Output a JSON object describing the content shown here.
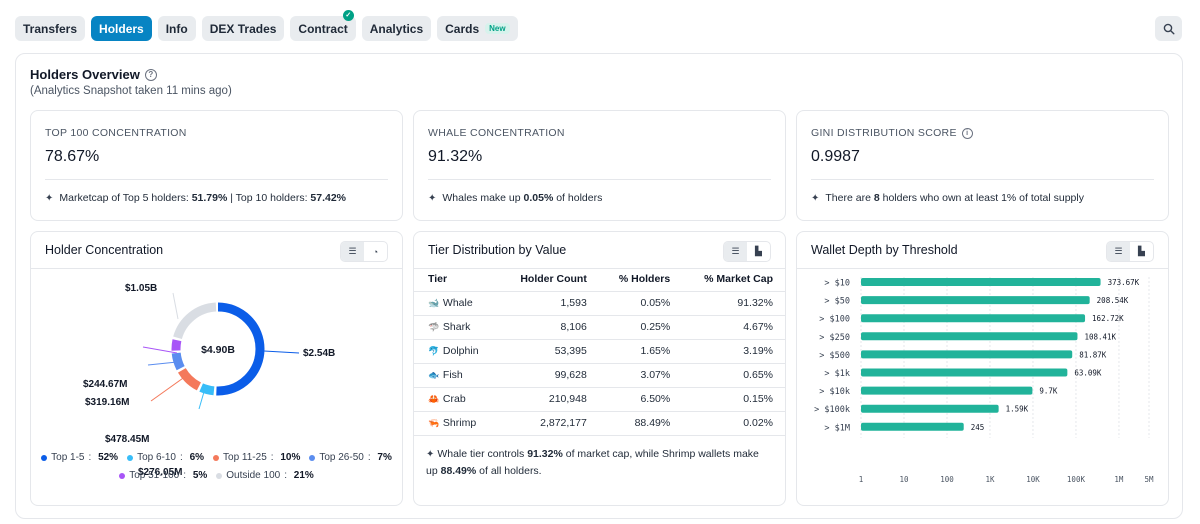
{
  "tabs": [
    {
      "label": "Transfers",
      "active": false
    },
    {
      "label": "Holders",
      "active": true
    },
    {
      "label": "Info",
      "active": false
    },
    {
      "label": "DEX Trades",
      "active": false
    },
    {
      "label": "Contract",
      "active": false
    },
    {
      "label": "Analytics",
      "active": false
    },
    {
      "label": "Cards",
      "active": false,
      "badge": "New"
    }
  ],
  "overview": {
    "title": "Holders Overview",
    "subtitle": "(Analytics Snapshot taken 11 mins ago)"
  },
  "stats": {
    "top100": {
      "label": "TOP 100 CONCENTRATION",
      "value": "78.67%",
      "note_pre": "Marketcap of Top 5 holders: ",
      "note_b1": "51.79%",
      "note_mid": " | Top 10 holders: ",
      "note_b2": "57.42%"
    },
    "whale": {
      "label": "WHALE CONCENTRATION",
      "value": "91.32%",
      "note_pre": "Whales make up ",
      "note_b1": "0.05%",
      "note_post": " of holders"
    },
    "gini": {
      "label": "GINI DISTRIBUTION SCORE",
      "value": "0.9987",
      "note_pre": "There are ",
      "note_b1": "8",
      "note_post": " holders who own at least 1% of total supply"
    }
  },
  "concentration": {
    "title": "Holder Concentration",
    "center": "$4.90B",
    "slices": [
      {
        "label": "Top 1-5",
        "pct": "52%",
        "value": 52,
        "amount": "$2.54B",
        "color": "#0b5de8"
      },
      {
        "label": "Top 6-10",
        "pct": "6%",
        "value": 6,
        "amount": "$276.05M",
        "color": "#38bdf8"
      },
      {
        "label": "Top 11-25",
        "pct": "10%",
        "value": 10,
        "amount": "$478.45M",
        "color": "#f4795b"
      },
      {
        "label": "Top 26-50",
        "pct": "7%",
        "value": 7,
        "amount": "$319.16M",
        "color": "#5b8def"
      },
      {
        "label": "Top 51-100",
        "pct": "5%",
        "value": 5,
        "amount": "$244.67M",
        "color": "#a855f7"
      },
      {
        "label": "Outside 100",
        "pct": "21%",
        "value": 21,
        "amount": "$1.05B",
        "color": "#d9dde3"
      }
    ]
  },
  "tiers": {
    "title": "Tier Distribution by Value",
    "headers": [
      "Tier",
      "Holder Count",
      "% Holders",
      "% Market Cap"
    ],
    "rows": [
      {
        "icon": "🐋",
        "tier": "Whale",
        "count": "1,593",
        "holders": "0.05%",
        "mcap": "91.32%"
      },
      {
        "icon": "🦈",
        "tier": "Shark",
        "count": "8,106",
        "holders": "0.25%",
        "mcap": "4.67%"
      },
      {
        "icon": "🐬",
        "tier": "Dolphin",
        "count": "53,395",
        "holders": "1.65%",
        "mcap": "3.19%"
      },
      {
        "icon": "🐟",
        "tier": "Fish",
        "count": "99,628",
        "holders": "3.07%",
        "mcap": "0.65%"
      },
      {
        "icon": "🦀",
        "tier": "Crab",
        "count": "210,948",
        "holders": "6.50%",
        "mcap": "0.15%"
      },
      {
        "icon": "🦐",
        "tier": "Shrimp",
        "count": "2,872,177",
        "holders": "88.49%",
        "mcap": "0.02%"
      }
    ],
    "note_pre": "Whale tier controls ",
    "note_b1": "91.32%",
    "note_mid": " of market cap, while Shrimp wallets make up ",
    "note_b2": "88.49%",
    "note_post": " of all holders."
  },
  "depth": {
    "title": "Wallet Depth by Threshold"
  },
  "chart_data": {
    "type": "bar",
    "orientation": "horizontal",
    "log_scale": true,
    "categories": [
      "> $10",
      "> $50",
      "> $100",
      "> $250",
      "> $500",
      "> $1k",
      "> $10k",
      "> $100k",
      "> $1M"
    ],
    "values": [
      373670,
      208540,
      162720,
      108410,
      81870,
      63090,
      9700,
      1590,
      245
    ],
    "value_labels": [
      "373.67K",
      "208.54K",
      "162.72K",
      "108.41K",
      "81.87K",
      "63.09K",
      "9.7K",
      "1.59K",
      "245"
    ],
    "x_ticks": [
      1,
      10,
      100,
      1000,
      10000,
      100000,
      1000000,
      5000000
    ],
    "x_tick_labels": [
      "1",
      "10",
      "100",
      "1K",
      "10K",
      "100K",
      "1M",
      "5M"
    ],
    "xlim": [
      1,
      5000000
    ],
    "grid": true,
    "color": "#21b39a"
  },
  "colors": {
    "accent": "#0784c3",
    "bar": "#21b39a",
    "check": "#00a186"
  }
}
